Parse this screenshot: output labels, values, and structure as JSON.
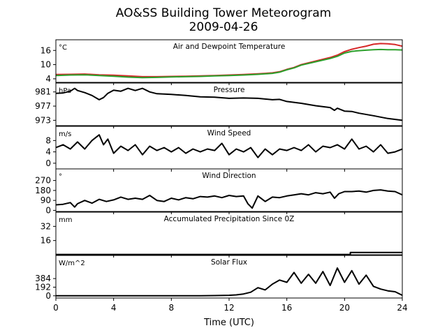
{
  "figure": {
    "title_line1": "AO&SS Building Tower Meteorogram",
    "title_line2": "2009-04-26",
    "xlabel": "Time (UTC)"
  },
  "chart_data": {
    "type": "line",
    "x_ticks": [
      0,
      4,
      8,
      12,
      16,
      20,
      24
    ],
    "x_tick_labels": [
      "0",
      "4",
      "8",
      "12",
      "16",
      "20",
      "24"
    ],
    "xlim": [
      0,
      24
    ],
    "panels": [
      {
        "id": "temp",
        "title": "Air and Dewpoint Temperature",
        "unit": "°C",
        "ylim": [
          2.5,
          20.5
        ],
        "yticks": [
          4,
          10,
          16
        ],
        "ytick_labels": [
          "4",
          "10",
          "16"
        ],
        "series": [
          {
            "color": "#d62728",
            "x": [
              0,
              1,
              2,
              3,
              4,
              5,
              6,
              7,
              8,
              9,
              10,
              11,
              12,
              13,
              14,
              15,
              15.5,
              16,
              16.5,
              17,
              18,
              19,
              19.5,
              20,
              20.5,
              21,
              21.5,
              22,
              22.5,
              23,
              23.5,
              24
            ],
            "y": [
              5.8,
              5.9,
              6.0,
              5.7,
              5.5,
              5.2,
              4.9,
              4.9,
              5.0,
              5.1,
              5.2,
              5.4,
              5.6,
              5.8,
              6.1,
              6.5,
              7.0,
              8.0,
              8.8,
              10.0,
              11.5,
              13.0,
              14.0,
              15.5,
              16.5,
              17.2,
              17.8,
              18.6,
              18.9,
              18.8,
              18.5,
              17.8
            ]
          },
          {
            "color": "#2ca02c",
            "x": [
              0,
              1,
              2,
              3,
              4,
              5,
              6,
              7,
              8,
              9,
              10,
              11,
              12,
              13,
              14,
              15,
              15.5,
              16,
              16.5,
              17,
              18,
              19,
              19.5,
              20,
              20.5,
              21,
              21.5,
              22,
              22.5,
              23,
              23.5,
              24
            ],
            "y": [
              5.4,
              5.6,
              5.7,
              5.4,
              5.1,
              4.7,
              4.5,
              4.6,
              4.8,
              4.9,
              5.0,
              5.2,
              5.4,
              5.6,
              5.9,
              6.3,
              6.8,
              7.8,
              8.6,
              9.8,
              11.2,
              12.6,
              13.5,
              14.9,
              15.6,
              15.9,
              16.1,
              16.3,
              16.4,
              16.3,
              16.3,
              16.2
            ]
          }
        ]
      },
      {
        "id": "pressure",
        "title": "Pressure",
        "unit": "hPa",
        "ylim": [
          971.5,
          983.5
        ],
        "yticks": [
          973,
          977,
          981
        ],
        "ytick_labels": [
          "973",
          "977",
          "981"
        ],
        "series": [
          {
            "color": "#000000",
            "x": [
              0,
              0.5,
              1,
              1.3,
              1.5,
              2,
              2.5,
              3,
              3.3,
              3.6,
              4,
              4.5,
              5,
              5.5,
              6,
              6.5,
              7,
              8,
              9,
              10,
              11,
              12,
              13,
              14,
              15,
              15.5,
              16,
              17,
              18,
              19,
              19.3,
              19.5,
              20,
              20.5,
              21,
              22,
              23,
              24
            ],
            "y": [
              980.6,
              980.7,
              981.2,
              982.0,
              981.4,
              980.8,
              980.0,
              978.8,
              979.4,
              980.6,
              981.5,
              981.2,
              982.0,
              981.4,
              982.0,
              981.0,
              980.5,
              980.3,
              980.0,
              979.6,
              979.5,
              979.2,
              979.3,
              979.2,
              978.8,
              978.9,
              978.3,
              977.8,
              977.1,
              976.6,
              975.8,
              976.4,
              975.6,
              975.5,
              975.0,
              974.3,
              973.5,
              973.0
            ]
          }
        ]
      },
      {
        "id": "wind_speed",
        "title": "Wind Speed",
        "unit": "m/s",
        "ylim": [
          -2,
          13
        ],
        "yticks": [
          0,
          4,
          8
        ],
        "ytick_labels": [
          "0",
          "4",
          "8"
        ],
        "series": [
          {
            "color": "#000000",
            "x": [
              0,
              0.5,
              1,
              1.5,
              2,
              2.5,
              3,
              3.3,
              3.6,
              4,
              4.5,
              5,
              5.5,
              6,
              6.5,
              7,
              7.5,
              8,
              8.5,
              9,
              9.5,
              10,
              10.5,
              11,
              11.5,
              12,
              12.5,
              13,
              13.5,
              14,
              14.5,
              15,
              15.5,
              16,
              16.5,
              17,
              17.5,
              18,
              18.5,
              19,
              19.5,
              20,
              20.5,
              21,
              21.5,
              22,
              22.5,
              23,
              23.5,
              24
            ],
            "y": [
              5.5,
              6.5,
              5.0,
              7.5,
              5.0,
              8.0,
              10.0,
              6.5,
              8.5,
              3.5,
              6.0,
              4.5,
              6.5,
              3.0,
              6.0,
              4.5,
              5.5,
              4.0,
              5.5,
              3.5,
              5.0,
              4.0,
              5.0,
              4.5,
              7.0,
              3.0,
              5.0,
              4.0,
              5.5,
              2.0,
              5.0,
              3.0,
              5.0,
              4.5,
              5.5,
              4.5,
              6.5,
              4.0,
              6.0,
              5.5,
              6.5,
              5.0,
              8.5,
              5.0,
              6.0,
              4.0,
              6.5,
              3.5,
              4.0,
              5.0
            ]
          }
        ]
      },
      {
        "id": "wind_direction",
        "title": "Wind Direction",
        "unit": "°",
        "ylim": [
          -10,
          375
        ],
        "yticks": [
          0,
          90,
          180,
          270
        ],
        "ytick_labels": [
          "0",
          "90",
          "180",
          "270"
        ],
        "series": [
          {
            "color": "#000000",
            "x": [
              0,
              0.5,
              1,
              1.3,
              1.5,
              2,
              2.5,
              3,
              3.5,
              4,
              4.5,
              5,
              5.5,
              6,
              6.5,
              7,
              7.5,
              8,
              8.5,
              9,
              9.5,
              10,
              10.5,
              11,
              11.5,
              12,
              12.5,
              13,
              13.3,
              13.6,
              14,
              14.5,
              15,
              15.5,
              16,
              16.5,
              17,
              17.5,
              18,
              18.5,
              19,
              19.3,
              19.6,
              20,
              20.5,
              21,
              21.5,
              22,
              22.5,
              23,
              23.5,
              24
            ],
            "y": [
              50,
              55,
              70,
              30,
              60,
              90,
              65,
              100,
              80,
              95,
              120,
              100,
              110,
              100,
              135,
              90,
              80,
              110,
              95,
              115,
              105,
              125,
              120,
              130,
              115,
              135,
              125,
              130,
              60,
              20,
              130,
              80,
              120,
              115,
              130,
              140,
              150,
              140,
              160,
              150,
              165,
              110,
              150,
              170,
              170,
              175,
              165,
              180,
              185,
              175,
              170,
              140
            ]
          }
        ]
      },
      {
        "id": "precip",
        "title": "Accumulated Precipitation Since 0Z",
        "unit": "mm",
        "ylim": [
          0,
          48
        ],
        "yticks": [
          16,
          32
        ],
        "ytick_labels": [
          "16",
          "32"
        ],
        "series": [
          {
            "color": "#000000",
            "x": [
              0,
              20.4,
              20.4,
              24
            ],
            "y": [
              0.3,
              0.3,
              2.5,
              2.5
            ]
          }
        ]
      },
      {
        "id": "solar",
        "title": "Solar Flux",
        "unit": "W/m^2",
        "ylim": [
          -50,
          900
        ],
        "yticks": [
          0,
          192,
          384
        ],
        "ytick_labels": [
          "0",
          "192",
          "384"
        ],
        "series": [
          {
            "color": "#000000",
            "x": [
              0,
              2,
              4,
              6,
              8,
              10,
              11,
              12,
              12.5,
              13,
              13.5,
              14,
              14.5,
              15,
              15.5,
              16,
              16.5,
              17,
              17.5,
              18,
              18.5,
              19,
              19.5,
              20,
              20.5,
              21,
              21.5,
              22,
              22.5,
              23,
              23.5,
              24
            ],
            "y": [
              0,
              0,
              0,
              0,
              0,
              2,
              5,
              10,
              20,
              40,
              80,
              180,
              130,
              260,
              350,
              300,
              520,
              280,
              480,
              280,
              540,
              230,
              620,
              300,
              560,
              260,
              460,
              210,
              150,
              110,
              90,
              10
            ]
          }
        ]
      }
    ]
  }
}
